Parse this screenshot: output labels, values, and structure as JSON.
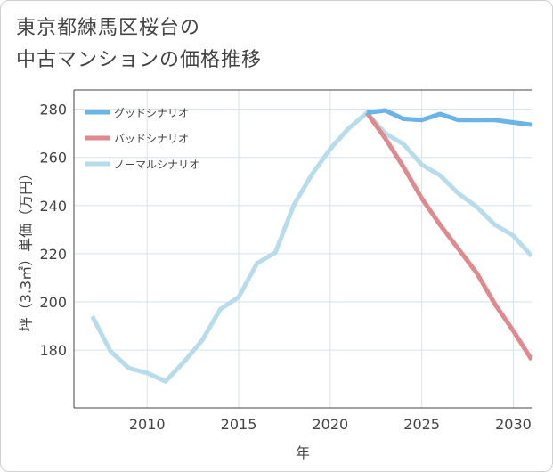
{
  "title_lines": [
    "東京都練馬区桜台の",
    "中古マンションの価格推移"
  ],
  "chart_data": {
    "type": "line",
    "xlabel": "年",
    "ylabel": "坪（3.3㎡）単価（万円）",
    "xlim": [
      2006,
      2031
    ],
    "ylim": [
      156,
      288
    ],
    "x_ticks": [
      2010,
      2015,
      2020,
      2025,
      2030
    ],
    "y_ticks": [
      180,
      200,
      220,
      240,
      260,
      280
    ],
    "grid": true,
    "legend_position": "top-left",
    "series": [
      {
        "name": "グッドシナリオ",
        "color": "#6ab4e8",
        "points": [
          [
            2022,
            278.5
          ],
          [
            2023,
            279.5
          ],
          [
            2024,
            276
          ],
          [
            2025,
            275.5
          ],
          [
            2026,
            278
          ],
          [
            2027,
            275.5
          ],
          [
            2028,
            275.5
          ],
          [
            2029,
            275.5
          ],
          [
            2030,
            274.5
          ],
          [
            2031,
            273.5
          ]
        ]
      },
      {
        "name": "バッドシナリオ",
        "color": "#de8a8e",
        "points": [
          [
            2022,
            278.5
          ],
          [
            2023,
            268
          ],
          [
            2024,
            256
          ],
          [
            2025,
            243
          ],
          [
            2026,
            232
          ],
          [
            2027,
            222
          ],
          [
            2028,
            212
          ],
          [
            2029,
            199
          ],
          [
            2030,
            188
          ],
          [
            2031,
            176
          ]
        ]
      },
      {
        "name": "ノーマルシナリオ",
        "color": "#b7ddec",
        "points": [
          [
            2007,
            194
          ],
          [
            2008,
            179.5
          ],
          [
            2009,
            172.5
          ],
          [
            2010,
            170.5
          ],
          [
            2011,
            167
          ],
          [
            2012,
            175
          ],
          [
            2013,
            184
          ],
          [
            2014,
            197
          ],
          [
            2015,
            202
          ],
          [
            2016,
            216
          ],
          [
            2017,
            220.5
          ],
          [
            2018,
            240
          ],
          [
            2019,
            253
          ],
          [
            2020,
            263.5
          ],
          [
            2021,
            272
          ],
          [
            2022,
            278.5
          ],
          [
            2023,
            270
          ],
          [
            2024,
            265.5
          ],
          [
            2025,
            257
          ],
          [
            2026,
            252.5
          ],
          [
            2027,
            245
          ],
          [
            2028,
            239.5
          ],
          [
            2029,
            232
          ],
          [
            2030,
            227.5
          ],
          [
            2031,
            219
          ]
        ]
      }
    ]
  }
}
